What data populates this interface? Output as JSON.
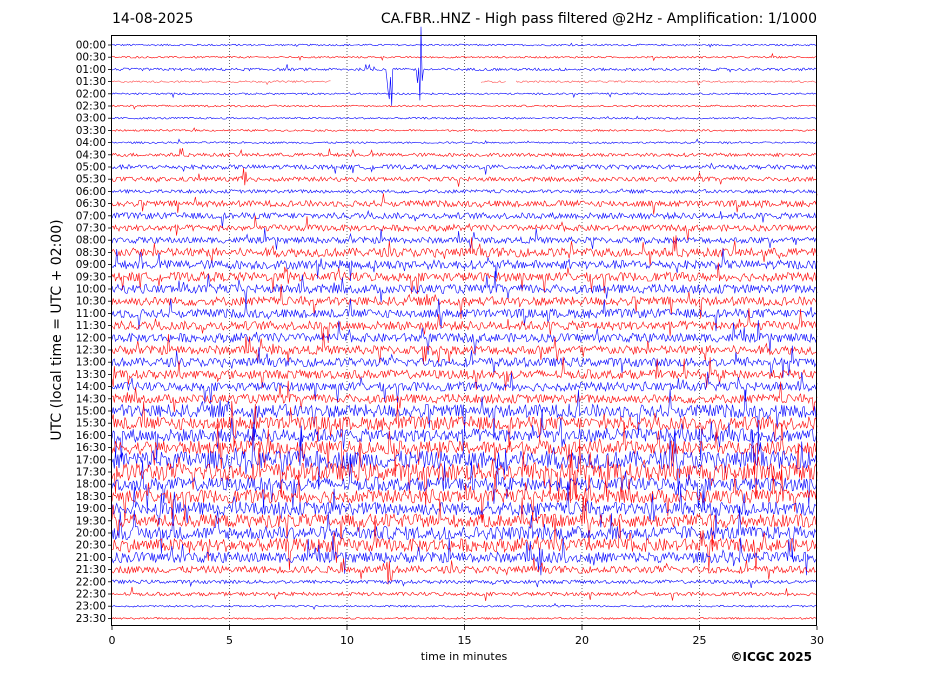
{
  "header": {
    "date": "14-08-2025",
    "title": "CA.FBR..HNZ - High pass filtered @2Hz - Amplification: 1/1000"
  },
  "footer": {
    "copyright": "©ICGC 2025"
  },
  "colors": {
    "trace_a": "#0000ff",
    "trace_b": "#ff0000",
    "grid": "#000000"
  },
  "chart_data": {
    "type": "line",
    "title": "CA.FBR..HNZ - High pass filtered @2Hz - Amplification: 1/1000",
    "xlabel": "time in minutes",
    "ylabel": "UTC (local time = UTC + 02:00)",
    "xlim": [
      0,
      30
    ],
    "xticks": [
      0,
      5,
      10,
      15,
      20,
      25,
      30
    ],
    "row_labels": [
      "00:00",
      "00:30",
      "01:00",
      "01:30",
      "02:00",
      "02:30",
      "03:00",
      "03:30",
      "04:00",
      "04:30",
      "05:00",
      "05:30",
      "06:00",
      "06:30",
      "07:00",
      "07:30",
      "08:00",
      "08:30",
      "09:00",
      "09:30",
      "10:00",
      "10:30",
      "11:00",
      "11:30",
      "12:00",
      "12:30",
      "13:00",
      "13:30",
      "14:00",
      "14:30",
      "15:00",
      "15:30",
      "16:00",
      "16:30",
      "17:00",
      "17:30",
      "18:00",
      "18:30",
      "19:00",
      "19:30",
      "20:00",
      "20:30",
      "21:00",
      "21:30",
      "22:00",
      "22:30",
      "23:00",
      "23:30"
    ],
    "trace_colors": [
      "blue",
      "red"
    ],
    "data_gaps": [
      {
        "row": "01:30",
        "from_minute": 9.3,
        "to_minute": 15.7
      },
      {
        "row": "01:30",
        "from_minute": 16.8,
        "to_minute": 17.2
      }
    ],
    "events": [
      {
        "row": "01:00",
        "minute": 11.8,
        "amplitude": 1.0
      },
      {
        "row": "01:00",
        "minute": 13.1,
        "amplitude": 1.0
      },
      {
        "row": "05:30",
        "minute": 5.6,
        "amplitude": 0.3
      },
      {
        "row": "08:30",
        "minute": 19.5,
        "amplitude": 0.3
      },
      {
        "row": "09:30",
        "minute": 7.4,
        "amplitude": 0.3
      },
      {
        "row": "16:00",
        "minute": 19.2,
        "amplitude": 0.4
      },
      {
        "row": "17:00",
        "minute": 16.8,
        "amplitude": 0.5
      },
      {
        "row": "19:00",
        "minute": 23.0,
        "amplitude": 0.5
      },
      {
        "row": "20:30",
        "minute": 9.5,
        "amplitude": 0.5
      },
      {
        "row": "21:00",
        "minute": 18.3,
        "amplitude": 0.4
      },
      {
        "row": "21:30",
        "minute": 11.8,
        "amplitude": 0.4
      }
    ],
    "noise_level_by_row": [
      0.02,
      0.02,
      0.03,
      0.02,
      0.02,
      0.02,
      0.02,
      0.02,
      0.02,
      0.04,
      0.05,
      0.05,
      0.04,
      0.07,
      0.07,
      0.07,
      0.07,
      0.1,
      0.1,
      0.1,
      0.1,
      0.1,
      0.1,
      0.1,
      0.1,
      0.1,
      0.1,
      0.1,
      0.1,
      0.1,
      0.15,
      0.15,
      0.15,
      0.15,
      0.2,
      0.2,
      0.15,
      0.15,
      0.15,
      0.15,
      0.15,
      0.15,
      0.12,
      0.08,
      0.04,
      0.04,
      0.02,
      0.02
    ]
  }
}
